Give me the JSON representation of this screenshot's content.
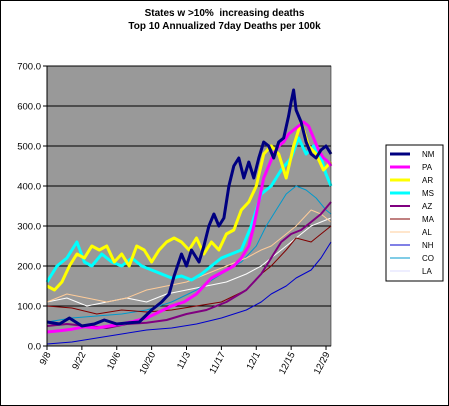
{
  "chart_data": {
    "type": "line",
    "title": "States w >10%  increasing deaths",
    "subtitle": "Top 10 Annualized 7day Deaths per 100k",
    "x_ticks": [
      "9/8",
      "9/22",
      "10/6",
      "10/20",
      "11/3",
      "11/17",
      "12/1",
      "12/15",
      "12/29"
    ],
    "y_ticks": [
      "0.0",
      "100.0",
      "200.0",
      "300.0",
      "400.0",
      "500.0",
      "600.0",
      "700.0"
    ],
    "ylim": [
      0,
      700
    ],
    "x_range_days": [
      0,
      114
    ],
    "plot_background": "#999999",
    "grid": "horizontal",
    "legend_position": "right",
    "series": [
      {
        "name": "NM",
        "color": "#000080",
        "width": 3,
        "points": [
          [
            0,
            60
          ],
          [
            5,
            55
          ],
          [
            9,
            70
          ],
          [
            14,
            50
          ],
          [
            19,
            55
          ],
          [
            23,
            65
          ],
          [
            28,
            55
          ],
          [
            33,
            58
          ],
          [
            37,
            60
          ],
          [
            42,
            90
          ],
          [
            46,
            110
          ],
          [
            49,
            130
          ],
          [
            51,
            175
          ],
          [
            54,
            230
          ],
          [
            56,
            200
          ],
          [
            58,
            240
          ],
          [
            61,
            210
          ],
          [
            63,
            250
          ],
          [
            65,
            300
          ],
          [
            67,
            330
          ],
          [
            69,
            300
          ],
          [
            71,
            320
          ],
          [
            73,
            400
          ],
          [
            75,
            450
          ],
          [
            77,
            470
          ],
          [
            79,
            420
          ],
          [
            81,
            460
          ],
          [
            83,
            420
          ],
          [
            85,
            470
          ],
          [
            87,
            510
          ],
          [
            89,
            500
          ],
          [
            91,
            470
          ],
          [
            93,
            510
          ],
          [
            95,
            520
          ],
          [
            97,
            575
          ],
          [
            98,
            610
          ],
          [
            99,
            640
          ],
          [
            100,
            590
          ],
          [
            102,
            560
          ],
          [
            104,
            510
          ],
          [
            106,
            480
          ],
          [
            108,
            470
          ],
          [
            110,
            490
          ],
          [
            112,
            500
          ],
          [
            114,
            480
          ]
        ]
      },
      {
        "name": "PA",
        "color": "#FF00FF",
        "width": 3,
        "points": [
          [
            0,
            35
          ],
          [
            5,
            38
          ],
          [
            10,
            42
          ],
          [
            15,
            48
          ],
          [
            20,
            45
          ],
          [
            25,
            50
          ],
          [
            30,
            55
          ],
          [
            35,
            62
          ],
          [
            40,
            70
          ],
          [
            45,
            85
          ],
          [
            50,
            100
          ],
          [
            55,
            110
          ],
          [
            60,
            130
          ],
          [
            63,
            150
          ],
          [
            66,
            170
          ],
          [
            69,
            180
          ],
          [
            72,
            190
          ],
          [
            75,
            200
          ],
          [
            78,
            220
          ],
          [
            81,
            250
          ],
          [
            83,
            300
          ],
          [
            85,
            360
          ],
          [
            87,
            420
          ],
          [
            89,
            450
          ],
          [
            91,
            480
          ],
          [
            93,
            500
          ],
          [
            95,
            510
          ],
          [
            97,
            530
          ],
          [
            99,
            540
          ],
          [
            101,
            550
          ],
          [
            103,
            560
          ],
          [
            105,
            550
          ],
          [
            107,
            520
          ],
          [
            109,
            490
          ],
          [
            111,
            470
          ],
          [
            113,
            460
          ],
          [
            114,
            450
          ]
        ]
      },
      {
        "name": "AR",
        "color": "#FFFF00",
        "width": 3,
        "points": [
          [
            0,
            150
          ],
          [
            3,
            140
          ],
          [
            6,
            160
          ],
          [
            9,
            200
          ],
          [
            12,
            230
          ],
          [
            15,
            220
          ],
          [
            18,
            250
          ],
          [
            21,
            240
          ],
          [
            24,
            250
          ],
          [
            27,
            210
          ],
          [
            30,
            230
          ],
          [
            33,
            200
          ],
          [
            36,
            250
          ],
          [
            39,
            240
          ],
          [
            42,
            210
          ],
          [
            45,
            240
          ],
          [
            48,
            260
          ],
          [
            51,
            270
          ],
          [
            54,
            260
          ],
          [
            57,
            240
          ],
          [
            60,
            270
          ],
          [
            63,
            230
          ],
          [
            66,
            260
          ],
          [
            69,
            240
          ],
          [
            72,
            280
          ],
          [
            75,
            290
          ],
          [
            78,
            340
          ],
          [
            81,
            360
          ],
          [
            84,
            400
          ],
          [
            87,
            480
          ],
          [
            90,
            500
          ],
          [
            93,
            480
          ],
          [
            96,
            420
          ],
          [
            99,
            500
          ],
          [
            102,
            560
          ],
          [
            105,
            500
          ],
          [
            108,
            480
          ],
          [
            111,
            440
          ],
          [
            114,
            460
          ]
        ]
      },
      {
        "name": "MS",
        "color": "#00FFFF",
        "width": 3,
        "points": [
          [
            0,
            160
          ],
          [
            4,
            200
          ],
          [
            8,
            220
          ],
          [
            12,
            260
          ],
          [
            15,
            210
          ],
          [
            18,
            200
          ],
          [
            22,
            230
          ],
          [
            26,
            210
          ],
          [
            30,
            200
          ],
          [
            34,
            220
          ],
          [
            38,
            200
          ],
          [
            42,
            190
          ],
          [
            46,
            180
          ],
          [
            50,
            170
          ],
          [
            54,
            175
          ],
          [
            58,
            165
          ],
          [
            62,
            180
          ],
          [
            66,
            200
          ],
          [
            70,
            220
          ],
          [
            74,
            230
          ],
          [
            78,
            240
          ],
          [
            82,
            300
          ],
          [
            86,
            380
          ],
          [
            90,
            400
          ],
          [
            94,
            440
          ],
          [
            98,
            470
          ],
          [
            101,
            520
          ],
          [
            104,
            480
          ],
          [
            107,
            500
          ],
          [
            110,
            470
          ],
          [
            112,
            430
          ],
          [
            114,
            400
          ]
        ]
      },
      {
        "name": "AZ",
        "color": "#800080",
        "width": 2,
        "points": [
          [
            0,
            50
          ],
          [
            8,
            55
          ],
          [
            16,
            50
          ],
          [
            24,
            45
          ],
          [
            32,
            55
          ],
          [
            40,
            58
          ],
          [
            48,
            65
          ],
          [
            56,
            80
          ],
          [
            64,
            90
          ],
          [
            72,
            110
          ],
          [
            80,
            140
          ],
          [
            86,
            180
          ],
          [
            90,
            220
          ],
          [
            94,
            260
          ],
          [
            98,
            280
          ],
          [
            102,
            290
          ],
          [
            106,
            310
          ],
          [
            110,
            330
          ],
          [
            114,
            360
          ]
        ]
      },
      {
        "name": "MA",
        "color": "#800000",
        "width": 1,
        "points": [
          [
            0,
            100
          ],
          [
            10,
            95
          ],
          [
            20,
            80
          ],
          [
            30,
            90
          ],
          [
            40,
            85
          ],
          [
            50,
            90
          ],
          [
            60,
            100
          ],
          [
            70,
            110
          ],
          [
            80,
            140
          ],
          [
            86,
            180
          ],
          [
            90,
            200
          ],
          [
            96,
            240
          ],
          [
            100,
            270
          ],
          [
            106,
            260
          ],
          [
            110,
            280
          ],
          [
            114,
            300
          ]
        ]
      },
      {
        "name": "AL",
        "color": "#FFCC99",
        "width": 1,
        "points": [
          [
            0,
            110
          ],
          [
            8,
            130
          ],
          [
            16,
            120
          ],
          [
            24,
            110
          ],
          [
            32,
            120
          ],
          [
            40,
            140
          ],
          [
            48,
            150
          ],
          [
            56,
            160
          ],
          [
            64,
            180
          ],
          [
            72,
            200
          ],
          [
            80,
            220
          ],
          [
            86,
            240
          ],
          [
            90,
            250
          ],
          [
            96,
            280
          ],
          [
            100,
            300
          ],
          [
            106,
            340
          ],
          [
            110,
            330
          ],
          [
            114,
            310
          ]
        ]
      },
      {
        "name": "NH",
        "color": "#0000CC",
        "width": 1,
        "points": [
          [
            0,
            5
          ],
          [
            10,
            10
          ],
          [
            20,
            20
          ],
          [
            30,
            30
          ],
          [
            40,
            40
          ],
          [
            50,
            45
          ],
          [
            60,
            55
          ],
          [
            70,
            70
          ],
          [
            80,
            90
          ],
          [
            86,
            110
          ],
          [
            90,
            130
          ],
          [
            96,
            150
          ],
          [
            100,
            170
          ],
          [
            106,
            190
          ],
          [
            110,
            220
          ],
          [
            114,
            260
          ]
        ]
      },
      {
        "name": "CO",
        "color": "#0099CC",
        "width": 1,
        "points": [
          [
            0,
            60
          ],
          [
            10,
            70
          ],
          [
            20,
            75
          ],
          [
            30,
            80
          ],
          [
            40,
            90
          ],
          [
            50,
            110
          ],
          [
            60,
            140
          ],
          [
            70,
            180
          ],
          [
            78,
            210
          ],
          [
            84,
            250
          ],
          [
            88,
            300
          ],
          [
            92,
            340
          ],
          [
            96,
            380
          ],
          [
            100,
            400
          ],
          [
            104,
            390
          ],
          [
            108,
            370
          ],
          [
            112,
            340
          ],
          [
            114,
            330
          ]
        ]
      },
      {
        "name": "LA",
        "color": "#FFFFFF",
        "width": 1,
        "points": [
          [
            0,
            110
          ],
          [
            8,
            120
          ],
          [
            16,
            100
          ],
          [
            24,
            110
          ],
          [
            32,
            120
          ],
          [
            40,
            110
          ],
          [
            48,
            130
          ],
          [
            56,
            140
          ],
          [
            64,
            150
          ],
          [
            72,
            160
          ],
          [
            80,
            180
          ],
          [
            86,
            200
          ],
          [
            90,
            220
          ],
          [
            96,
            250
          ],
          [
            100,
            270
          ],
          [
            106,
            300
          ],
          [
            110,
            310
          ],
          [
            114,
            320
          ]
        ]
      }
    ]
  }
}
